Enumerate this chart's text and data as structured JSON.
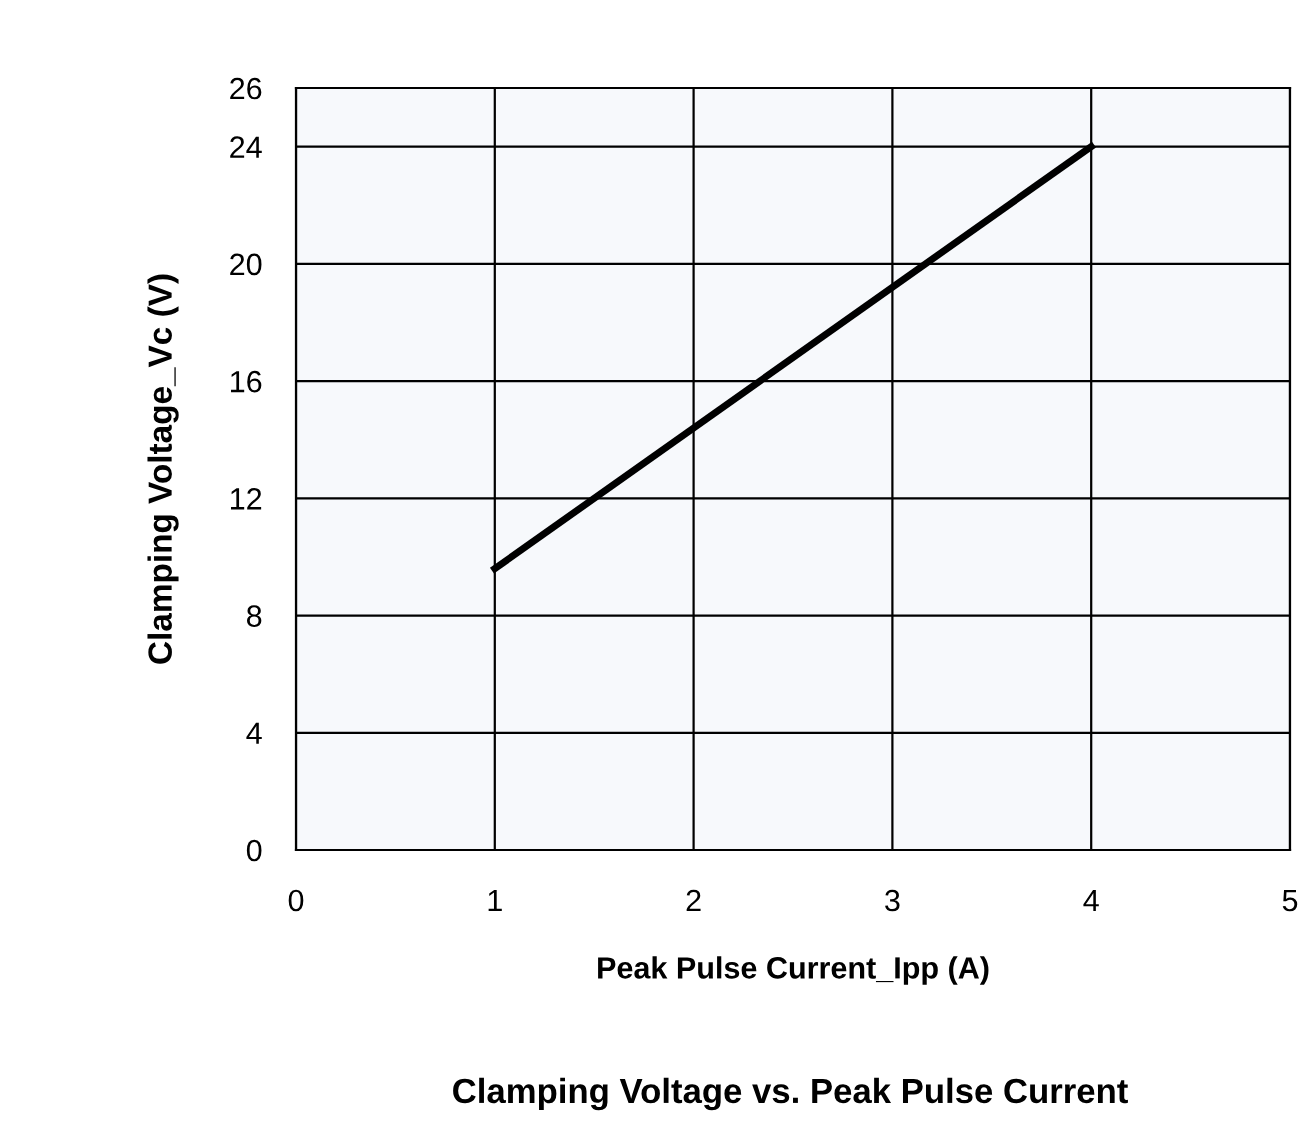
{
  "chart_data": {
    "type": "line",
    "title": "Clamping Voltage vs. Peak Pulse Current",
    "xlabel": "Peak Pulse Current_Ipp (A)",
    "ylabel": "Clamping Voltage_Vc (V)",
    "x": [
      1,
      4
    ],
    "series": [
      {
        "color": "#000000",
        "values": [
          9.6,
          24
        ]
      }
    ],
    "xlim": [
      0,
      5
    ],
    "xticks": [
      0,
      1,
      2,
      3,
      4,
      5
    ],
    "ylim": [
      0,
      26
    ],
    "yticks": [
      0,
      4,
      8,
      12,
      16,
      20,
      24,
      26
    ],
    "grid": true,
    "marker": "none",
    "line_style": "solid"
  }
}
